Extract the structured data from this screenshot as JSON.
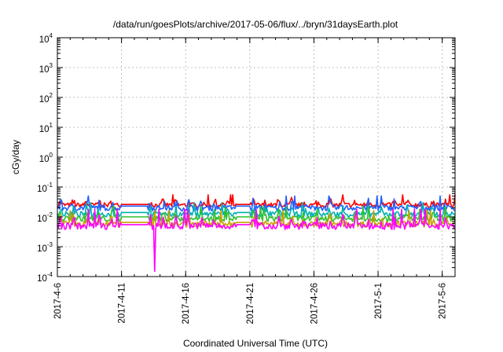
{
  "chart_data": {
    "type": "line",
    "title": "/data/run/goesPlots/archive/2017-05-06/flux/../bryn/31daysEarth.plot",
    "xlabel": "Coordinated Universal Time (UTC)",
    "ylabel": "cGy/day",
    "yscale": "log",
    "ylim": [
      0.0001,
      10000
    ],
    "y_tick_labels": [
      {
        "base": "10",
        "exp": "-4",
        "value": 0.0001
      },
      {
        "base": "10",
        "exp": "-3",
        "value": 0.001
      },
      {
        "base": "10",
        "exp": "-2",
        "value": 0.01
      },
      {
        "base": "10",
        "exp": "-1",
        "value": 0.1
      },
      {
        "base": "10",
        "exp": "0",
        "value": 1
      },
      {
        "base": "10",
        "exp": "1",
        "value": 10
      },
      {
        "base": "10",
        "exp": "2",
        "value": 100
      },
      {
        "base": "10",
        "exp": "3",
        "value": 1000
      },
      {
        "base": "10",
        "exp": "4",
        "value": 10000
      }
    ],
    "xlim": [
      "2017-04-06",
      "2017-05-07"
    ],
    "x_tick_labels": [
      "2017-4-6",
      "2017-4-11",
      "2017-4-16",
      "2017-4-21",
      "2017-4-26",
      "2017-5-1",
      "2017-5-6"
    ],
    "x_tick_dates": [
      "2017-04-06",
      "2017-04-11",
      "2017-04-16",
      "2017-04-21",
      "2017-04-26",
      "2017-05-01",
      "2017-05-06"
    ],
    "grid": true,
    "legend": "none",
    "series": [
      {
        "color": "#ff0000",
        "base": 0.026,
        "lo": 0.021,
        "hi": 0.045,
        "spike": 0.055
      },
      {
        "color": "#2060ff",
        "base": 0.023,
        "lo": 0.016,
        "hi": 0.042,
        "spike": 0.05
      },
      {
        "color": "#00b0b0",
        "base": 0.014,
        "lo": 0.01,
        "hi": 0.025,
        "spike": 0.03
      },
      {
        "color": "#30c030",
        "base": 0.01,
        "lo": 0.007,
        "hi": 0.018,
        "spike": 0.022
      },
      {
        "color": "#c8a000",
        "base": 0.0065,
        "lo": 0.0045,
        "hi": 0.013,
        "spike": 0.016
      },
      {
        "color": "#ff00ff",
        "base": 0.0055,
        "lo": 0.0038,
        "hi": 0.012,
        "spike": 0.018
      }
    ],
    "data_gaps": [
      {
        "start": "2017-04-11",
        "end": "2017-04-13"
      },
      {
        "start": "2017-04-20",
        "end": "2017-04-21"
      }
    ],
    "annotations": [
      {
        "type": "dip",
        "series": 5,
        "date": "2017-04-13.6",
        "value": 0.00015
      }
    ]
  }
}
